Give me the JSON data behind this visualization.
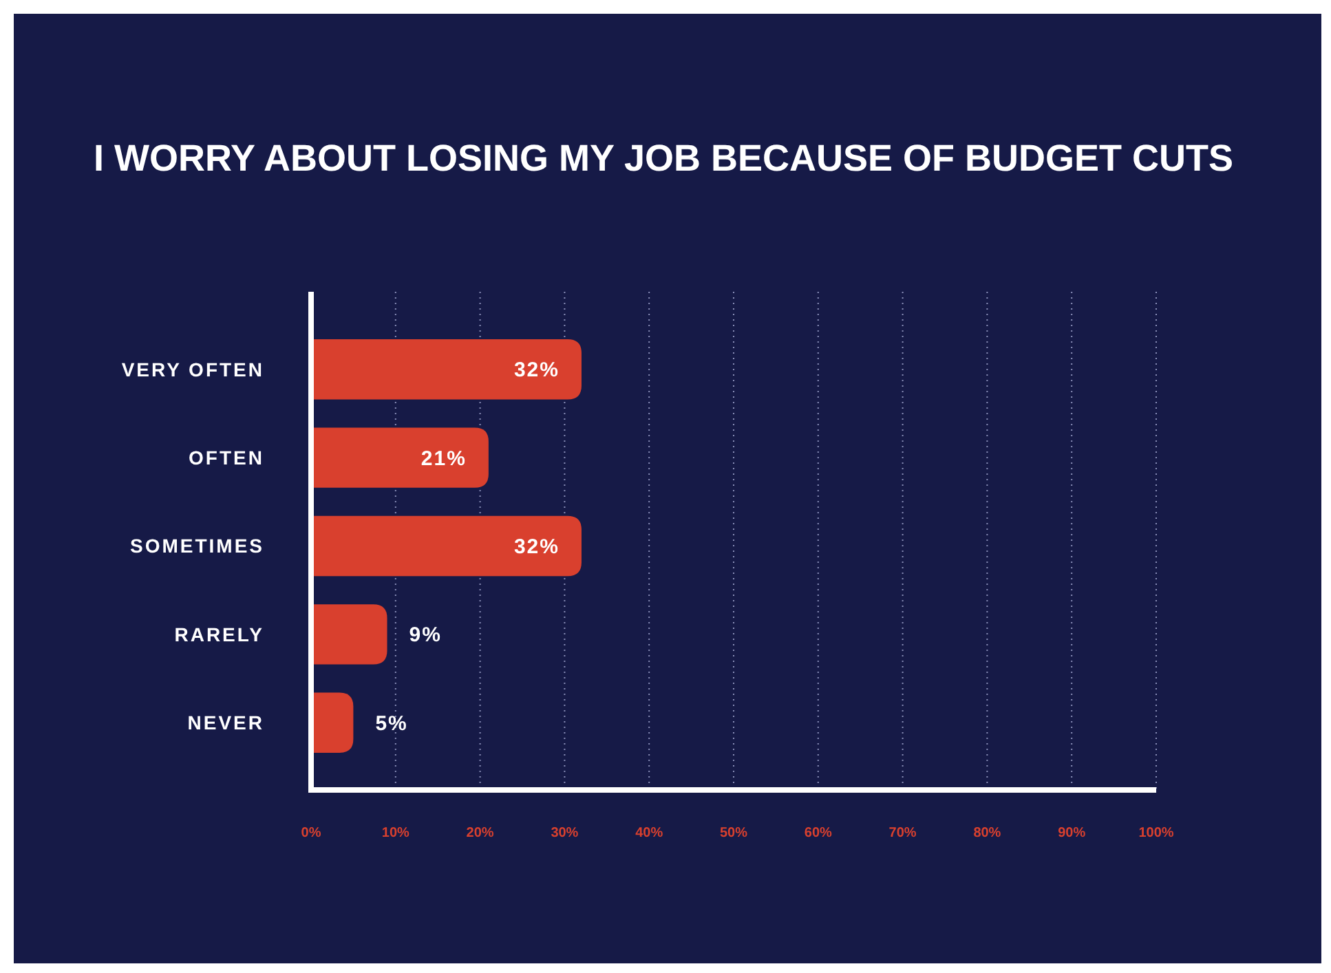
{
  "chart_data": {
    "type": "bar",
    "orientation": "horizontal",
    "title": "I WORRY ABOUT LOSING MY JOB BECAUSE OF BUDGET CUTS",
    "categories": [
      "VERY OFTEN",
      "OFTEN",
      "SOMETIMES",
      "RARELY",
      "NEVER"
    ],
    "values": [
      32,
      21,
      32,
      9,
      5
    ],
    "value_labels": [
      "32%",
      "21%",
      "32%",
      "9%",
      "5%"
    ],
    "color": "#d9402e",
    "xlim": [
      0,
      100
    ],
    "xticks": [
      {
        "value": 0,
        "label": "0%"
      },
      {
        "value": 10,
        "label": "10%"
      },
      {
        "value": 20,
        "label": "20%"
      },
      {
        "value": 30,
        "label": "30%"
      },
      {
        "value": 40,
        "label": "40%"
      },
      {
        "value": 50,
        "label": "50%"
      },
      {
        "value": 60,
        "label": "60%"
      },
      {
        "value": 70,
        "label": "70%"
      },
      {
        "value": 80,
        "label": "80%"
      },
      {
        "value": 90,
        "label": "90%"
      },
      {
        "value": 100,
        "label": "100%"
      }
    ],
    "grid": "x"
  }
}
